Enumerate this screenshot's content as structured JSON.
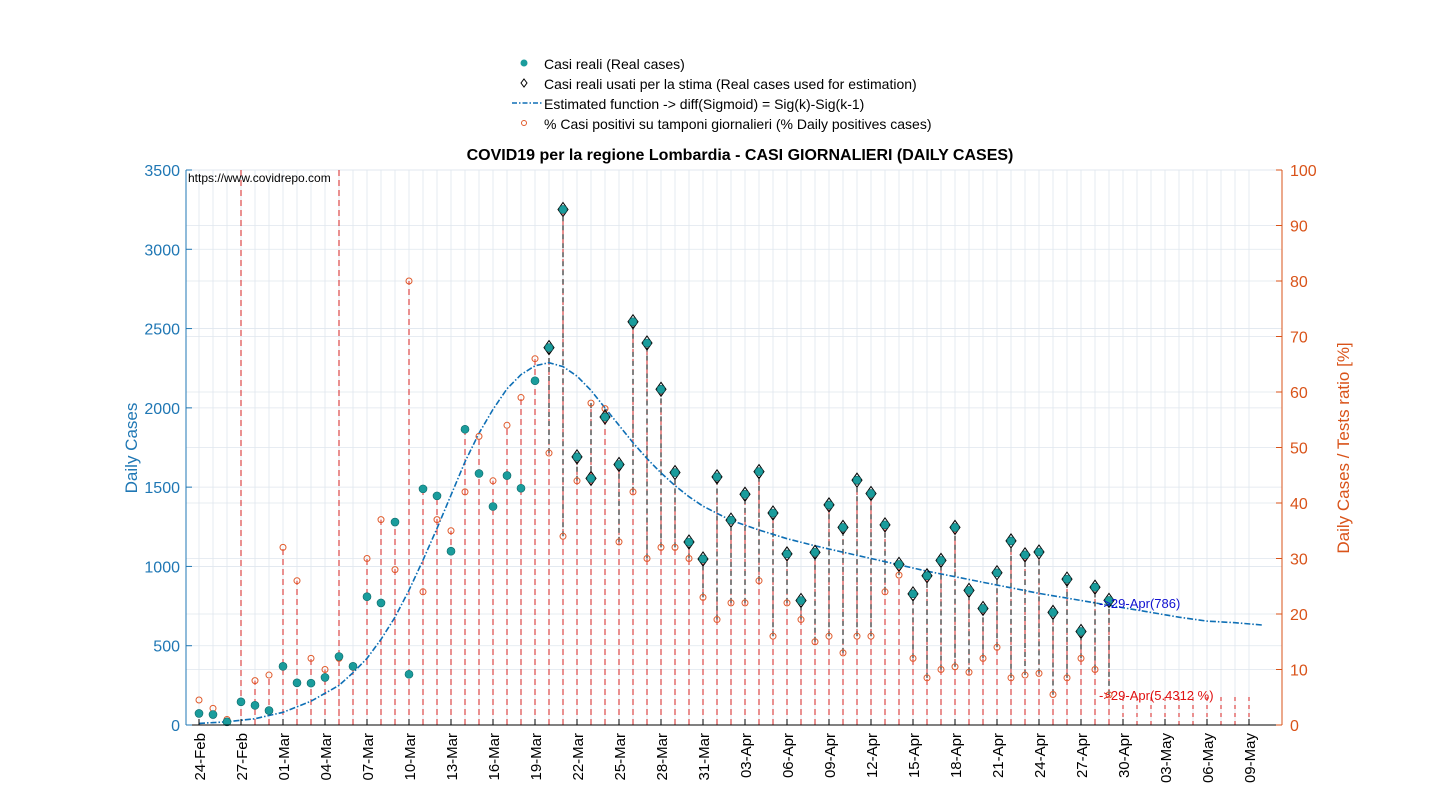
{
  "legend": {
    "real_cases": "Casi reali (Real cases)",
    "used_cases": "Casi reali usati per la stima (Real cases used for estimation)",
    "estimated": "Estimated function -> diff(Sigmoid) = Sig(k)-Sig(k-1)",
    "percent": "% Casi positivi su tamponi giornalieri (% Daily positives cases)"
  },
  "chart_data": {
    "type": "scatter",
    "title": "COVID19 per la regione Lombardia - CASI GIORNALIERI (DAILY CASES)",
    "source_text": "https://www.covidrepo.com",
    "ylabel_left": "Daily Cases",
    "ylabel_right": "Daily Cases / Tests ratio [%]",
    "ylim_left": [
      0,
      3500
    ],
    "ylim_right": [
      0,
      100
    ],
    "left_ticks": [
      0,
      500,
      1000,
      1500,
      2000,
      2500,
      3000,
      3500
    ],
    "right_ticks": [
      0,
      10,
      20,
      30,
      40,
      50,
      60,
      70,
      80,
      90,
      100
    ],
    "x_tick_labels": [
      "24-Feb",
      "27-Feb",
      "01-Mar",
      "04-Mar",
      "07-Mar",
      "10-Mar",
      "13-Mar",
      "16-Mar",
      "19-Mar",
      "22-Mar",
      "25-Mar",
      "28-Mar",
      "31-Mar",
      "03-Apr",
      "06-Apr",
      "09-Apr",
      "12-Apr",
      "15-Apr",
      "18-Apr",
      "21-Apr",
      "24-Apr",
      "27-Apr",
      "30-Apr",
      "03-May",
      "06-May",
      "09-May"
    ],
    "day_count": 76,
    "grid": true,
    "colors": {
      "cases": "#1a9c9c",
      "fit": "#0e6fb5",
      "percent": "#e05a2b",
      "red_lines": "#d42020",
      "annotation_cases": "#1010d0",
      "annotation_percent": "#e01010",
      "left_axis": "#1f77b4",
      "right_axis": "#d95319"
    },
    "series": [
      {
        "name": "Casi reali (Real cases)",
        "start_date": "24-Feb",
        "values": [
          73,
          66,
          20,
          146,
          124,
          91,
          370,
          266,
          264,
          300,
          432,
          370,
          809,
          770,
          1280,
          320,
          1489,
          1445,
          1096,
          1865,
          1586,
          1378,
          1573,
          1493,
          2171,
          2380,
          3251,
          1691,
          1555,
          1942,
          1643,
          2543,
          2409,
          2117,
          1592,
          1154,
          1047,
          1565,
          1292,
          1455,
          1598,
          1337,
          1079,
          785,
          1089,
          1388,
          1246,
          1544,
          1460,
          1262,
          1013,
          827,
          941,
          1038,
          1246,
          849,
          735,
          960,
          1161,
          1073,
          1091,
          710,
          920,
          590,
          869,
          786
        ],
        "used_from_index": 25
      },
      {
        "name": "% Casi positivi su tamponi giornalieri (% Daily positives cases)",
        "start_date": "24-Feb",
        "values": [
          4.5,
          3,
          1,
          null,
          8,
          9,
          32,
          26,
          12,
          10,
          12,
          null,
          30,
          37,
          28,
          80,
          24,
          37,
          35,
          42,
          52,
          44,
          54,
          59,
          66,
          49,
          34,
          44,
          58,
          57,
          33,
          42,
          30,
          32,
          32,
          30,
          23,
          19,
          22,
          22,
          26,
          16,
          22,
          19,
          15,
          16,
          13,
          16,
          16,
          24,
          27,
          12,
          8.5,
          10,
          10.5,
          9.5,
          12,
          14,
          8.5,
          9,
          9.3,
          5.5,
          8.5,
          12,
          10,
          5.4312
        ]
      }
    ],
    "fit": {
      "name": "Estimated function -> diff(Sigmoid) = Sig(k)-Sig(k-1)",
      "x_days": [
        0,
        2,
        4,
        6,
        8,
        10,
        11,
        12,
        13,
        14,
        15,
        16,
        17,
        18,
        19,
        20,
        21,
        22,
        23,
        24,
        25,
        26,
        27,
        28,
        29,
        30,
        31,
        32,
        33,
        34,
        35,
        36,
        38,
        40,
        42,
        44,
        46,
        48,
        50,
        52,
        54,
        56,
        58,
        60,
        62,
        64,
        66,
        68,
        70,
        72,
        74,
        76
      ],
      "values": [
        10,
        20,
        40,
        80,
        150,
        250,
        330,
        420,
        540,
        680,
        850,
        1040,
        1240,
        1450,
        1660,
        1840,
        1990,
        2120,
        2210,
        2265,
        2285,
        2260,
        2200,
        2110,
        2000,
        1890,
        1780,
        1680,
        1590,
        1510,
        1440,
        1380,
        1290,
        1230,
        1175,
        1130,
        1090,
        1050,
        1010,
        970,
        935,
        900,
        865,
        830,
        800,
        770,
        740,
        710,
        680,
        655,
        645,
        630
      ]
    },
    "red_dashed_days": [
      3,
      10
    ],
    "annotations": [
      {
        "text": "->29-Apr(786)",
        "color": "blue"
      },
      {
        "text": "->29-Apr(5.4312 %)",
        "color": "red"
      }
    ]
  }
}
